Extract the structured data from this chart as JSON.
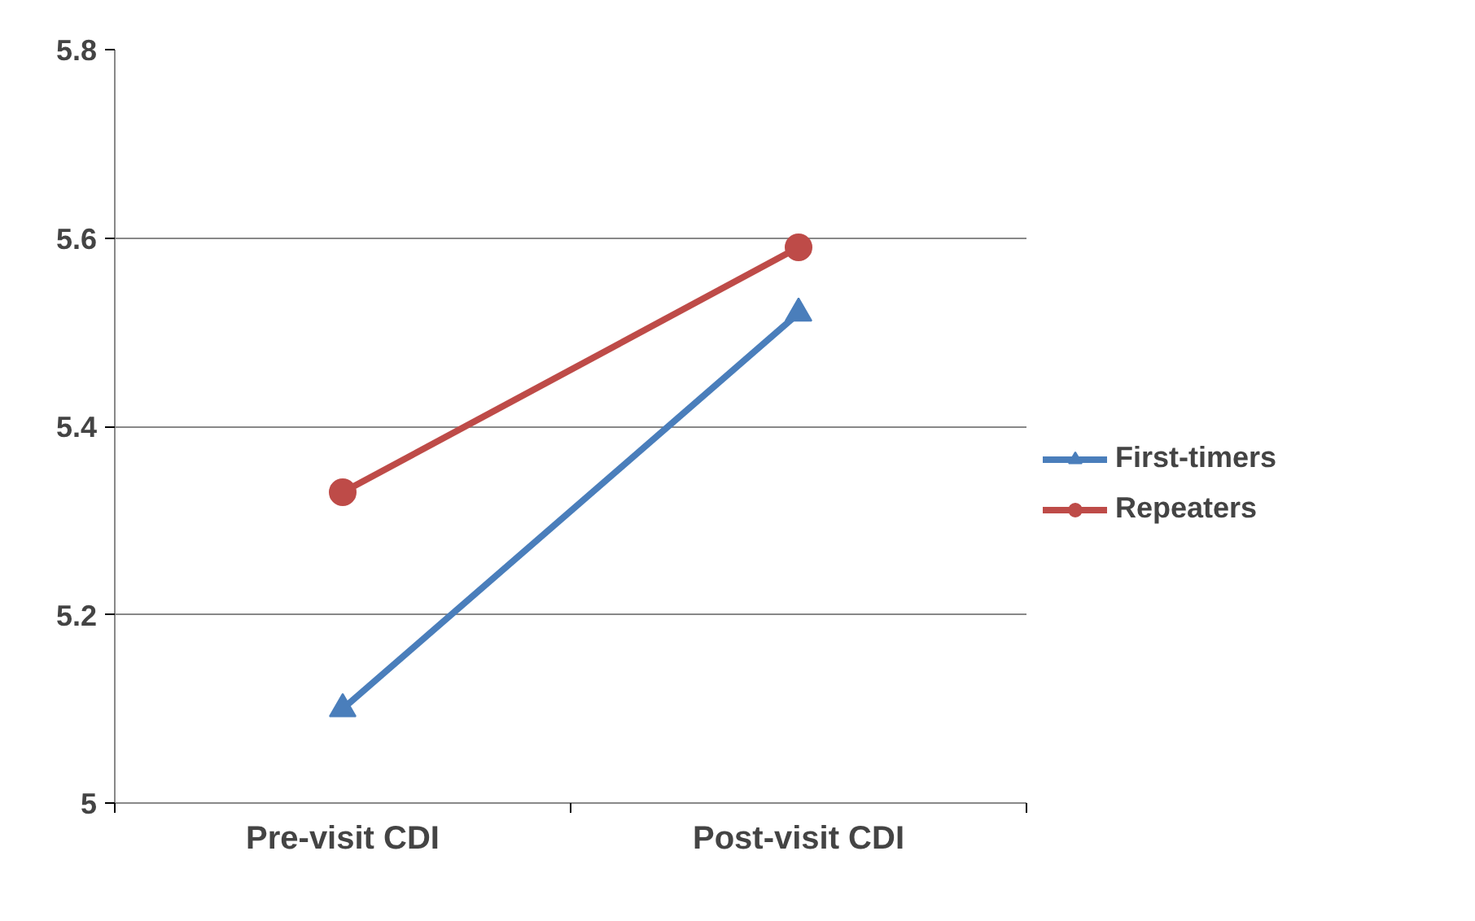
{
  "chart_data": {
    "type": "line",
    "categories": [
      "Pre-visit CDI",
      "Post-visit CDI"
    ],
    "series": [
      {
        "name": "First-timers",
        "color": "#4a7ebb",
        "values": [
          5.1,
          5.52
        ],
        "marker": "triangle"
      },
      {
        "name": "Repeaters",
        "color": "#be4b48",
        "values": [
          5.33,
          5.59
        ],
        "marker": "circle"
      }
    ],
    "ylim": [
      5,
      5.8
    ],
    "yticks": [
      {
        "value": 5,
        "label": "5"
      },
      5.2,
      5.4,
      5.6,
      5.8
    ],
    "grid": "y",
    "legend": "right",
    "line_style": "solid"
  }
}
